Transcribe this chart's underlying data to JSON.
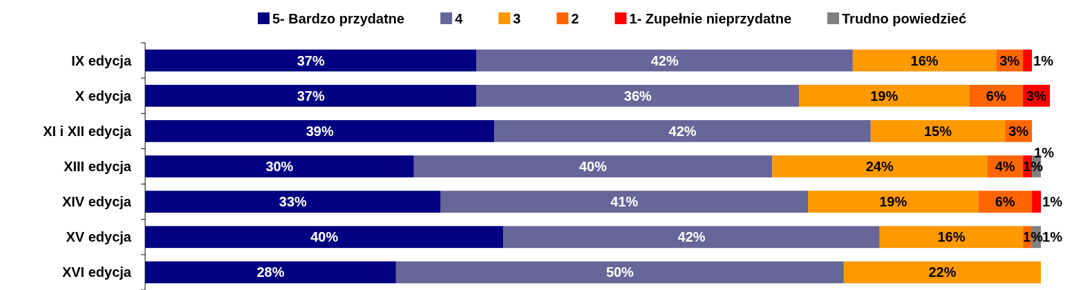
{
  "chart_data": {
    "type": "bar",
    "orientation": "horizontal",
    "stacked": true,
    "categories": [
      "IX edycja",
      "X edycja",
      "XI i XII edycja",
      "XIII edycja",
      "XIV edycja",
      "XV edycja",
      "XVI edycja"
    ],
    "series": [
      {
        "name": "5- Bardzo przydatne",
        "color": "#000080",
        "values": [
          37,
          37,
          39,
          30,
          33,
          40,
          28
        ],
        "value_labels": [
          "37%",
          "37%",
          "39%",
          "30%",
          "33%",
          "40%",
          "28%"
        ]
      },
      {
        "name": "4",
        "color": "#666699",
        "values": [
          42,
          36,
          42,
          40,
          41,
          42,
          50
        ],
        "value_labels": [
          "42%",
          "36%",
          "42%",
          "40%",
          "41%",
          "42%",
          "50%"
        ]
      },
      {
        "name": "3",
        "color": "#ff9900",
        "values": [
          16,
          19,
          15,
          24,
          19,
          16,
          22
        ],
        "value_labels": [
          "16%",
          "19%",
          "15%",
          "24%",
          "19%",
          "16%",
          "22%"
        ]
      },
      {
        "name": "2",
        "color": "#ff6600",
        "values": [
          3,
          6,
          3,
          4,
          6,
          1,
          null
        ],
        "value_labels": [
          "3%",
          "6%",
          "3%",
          "4%",
          "6%",
          "1%",
          null
        ]
      },
      {
        "name": "1- Zupełnie nieprzydatne",
        "color": "#ff0000",
        "values": [
          1,
          3,
          null,
          1,
          1,
          null,
          null
        ],
        "value_labels": [
          "1%",
          "3%",
          null,
          "1%",
          "1%",
          null,
          null
        ]
      },
      {
        "name": "Trudno powiedzieć",
        "color": "#808080",
        "values": [
          null,
          null,
          null,
          1,
          null,
          1,
          null
        ],
        "value_labels": [
          null,
          null,
          null,
          "1%",
          null,
          "1%",
          null
        ]
      }
    ],
    "legend": "top",
    "tick_labels": "y"
  }
}
